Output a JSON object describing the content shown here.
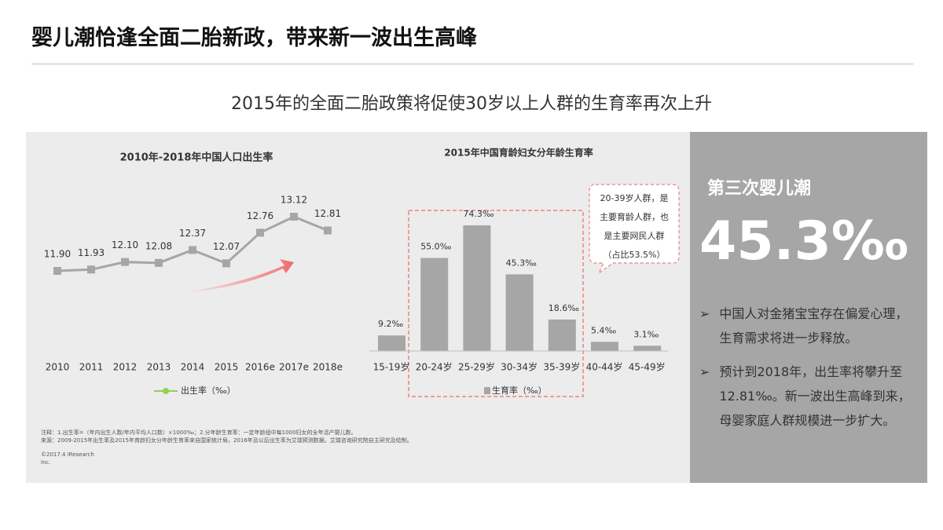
{
  "header": {
    "title": "婴儿潮恰逢全面二胎新政，带来新一波出生高峰",
    "subtitle": "2015年的全面二胎政策将促使30岁以上人群的生育率再次上升"
  },
  "chart_data": [
    {
      "type": "line",
      "title": "2010年-2018年中国人口出生率",
      "categories": [
        "2010",
        "2011",
        "2012",
        "2013",
        "2014",
        "2015",
        "2016e",
        "2017e",
        "2018e"
      ],
      "series": [
        {
          "name": "出生率（‰）",
          "color": "#a6a6a6",
          "legend_color": "#92d050",
          "values": [
            11.9,
            11.93,
            12.1,
            12.08,
            12.37,
            12.07,
            12.76,
            13.12,
            12.81
          ],
          "value_labels": [
            "11.90",
            "11.93",
            "12.10",
            "12.08",
            "12.37",
            "12.07",
            "12.76",
            "13.12",
            "12.81"
          ]
        }
      ]
    },
    {
      "type": "bar",
      "title": "2015年中国育龄妇女分年龄生育率",
      "categories": [
        "15-19岁",
        "20-24岁",
        "25-29岁",
        "30-34岁",
        "35-39岁",
        "40-44岁",
        "45-49岁"
      ],
      "series": [
        {
          "name": "生育率（‰）",
          "color": "#a6a6a6",
          "values": [
            9.2,
            55.0,
            74.3,
            45.3,
            18.6,
            5.4,
            3.1
          ],
          "value_labels": [
            "9.2‰",
            "55.0‰",
            "74.3‰",
            "45.3‰",
            "18.6‰",
            "5.4‰",
            "3.1‰"
          ]
        }
      ],
      "callout": [
        "20-39岁人群，是",
        "主要育龄人群，也",
        "是主要网民人群",
        "（占比53.5%）"
      ]
    }
  ],
  "notes": [
    "注释：1.出生率=（年内出生人数/年内平均人口数）×1000‰；2.分年龄生育率：一定年龄组中每1000妇女的全年活产婴儿数。",
    "来源：2009-2015年出生率及2015年育龄妇女分年龄生育率来自国家统计局，2016年及以后出生率为艾瑞预测数据。艾瑞咨询研究院自主研究及绘制。"
  ],
  "copyright": [
    "©2017.4 iResearch",
    "Inc."
  ],
  "sidebar": {
    "heading": "第三次婴儿潮",
    "big": "45.3‰",
    "bullets": [
      "中国人对金猪宝宝存在偏爱心理，生育需求将进一步释放。",
      "预计到2018年，出生率将攀升至12.81‰。新一波出生高峰到来，母婴家庭人群规模进一步扩大。"
    ]
  }
}
